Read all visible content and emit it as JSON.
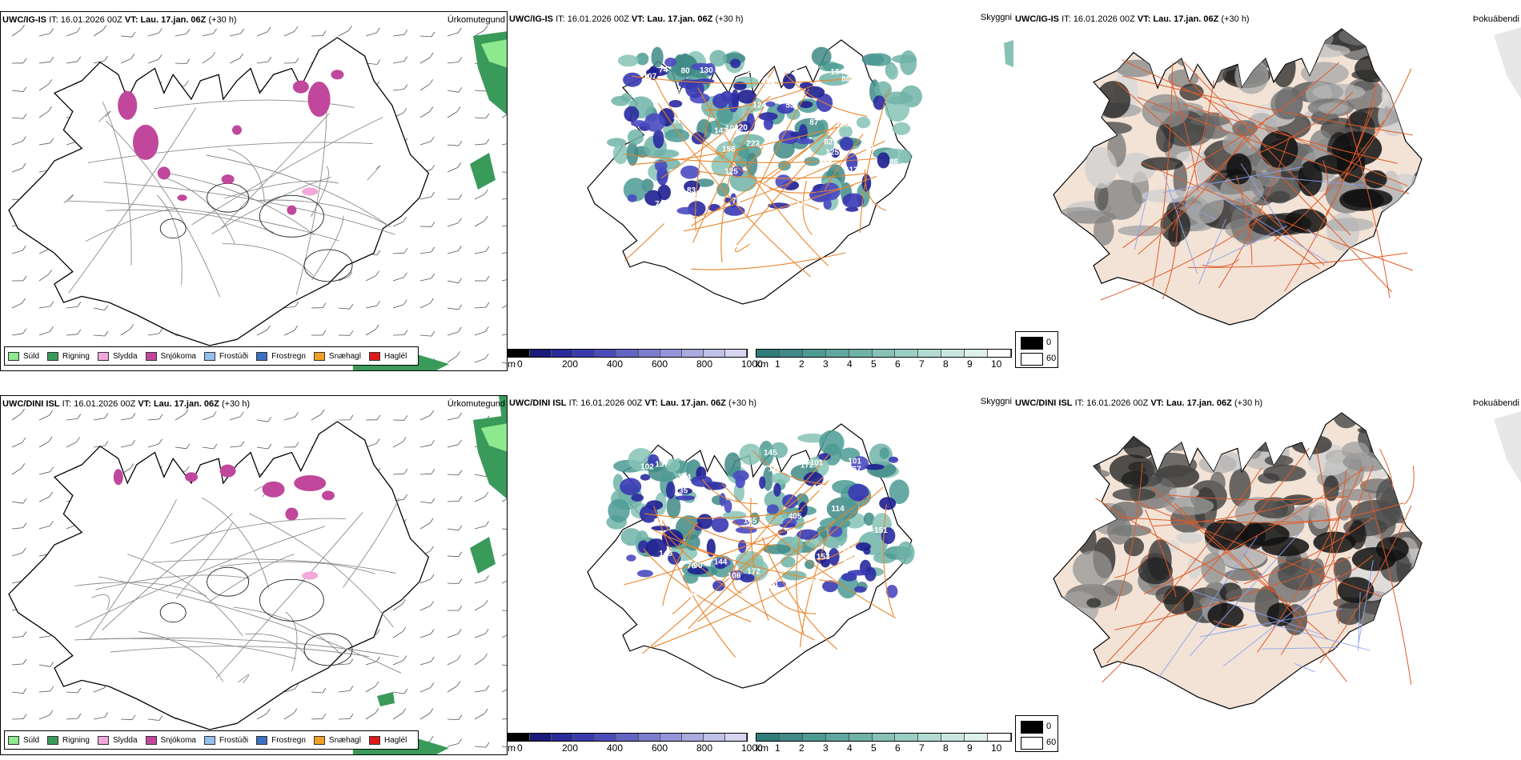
{
  "legend_items": [
    {
      "label": "Súld",
      "color": "#8ee88e"
    },
    {
      "label": "Rigning",
      "color": "#3a9a5a"
    },
    {
      "label": "Slydda",
      "color": "#f2a8d8"
    },
    {
      "label": "Snjókoma",
      "color": "#c0479b"
    },
    {
      "label": "Frostúði",
      "color": "#94c0ee"
    },
    {
      "label": "Frostregn",
      "color": "#3a70c0"
    },
    {
      "label": "Snæhagl",
      "color": "#f0a020"
    },
    {
      "label": "Haglél",
      "color": "#e01818"
    }
  ],
  "rows": [
    {
      "model": "UWC/IG-IS",
      "it_label": "IT:",
      "it": "16.01.2026 00Z",
      "vt_label": "VT:",
      "vt": "Lau. 17.jan. 06Z",
      "lead": "(+30 h)",
      "labels": {
        "precip": "Úrkomutegund",
        "visibility": "Skyggni",
        "fog": "Þokuábendi"
      },
      "visibility_labels": [
        "120",
        "82",
        "117",
        "155",
        "31",
        "82",
        "74",
        "124",
        "130",
        "53",
        "113",
        "79",
        "10",
        "86",
        "74",
        "88",
        "75",
        "110",
        "128",
        "143",
        "102",
        "103",
        "101",
        "117",
        "255",
        "223",
        "102",
        "164",
        "87",
        "119",
        "125",
        "80",
        "31",
        "107",
        "125",
        "158",
        "83"
      ]
    },
    {
      "model": "UWC/DINI ISL",
      "it_label": "IT:",
      "it": "16.01.2026 00Z",
      "vt_label": "VT:",
      "vt": "Lau. 17.jan. 06Z",
      "lead": "(+30 h)",
      "labels": {
        "precip": "Úrkomutegund",
        "visibility": "Skyggni",
        "fog": "Þokuábendi"
      },
      "visibility_labels": [
        "111",
        "60",
        "109",
        "124",
        "101",
        "92",
        "117",
        "81",
        "137",
        "92",
        "145",
        "172",
        "153",
        "167",
        "151",
        "135",
        "144",
        "145",
        "405",
        "172",
        "106",
        "102",
        "110",
        "114",
        "146",
        "136",
        "76",
        "101",
        "93",
        "90"
      ]
    }
  ],
  "height_bar": {
    "unit": "m",
    "ticks": [
      "0",
      "200",
      "400",
      "600",
      "800",
      "1000"
    ]
  },
  "cloud_bar": {
    "unit": "km",
    "ticks": [
      "1",
      "2",
      "3",
      "4",
      "5",
      "6",
      "7",
      "8",
      "9",
      "10"
    ]
  },
  "fog_legend": [
    {
      "label": "0",
      "color": "#000000"
    },
    {
      "label": "60",
      "color": "#ffffff"
    }
  ]
}
